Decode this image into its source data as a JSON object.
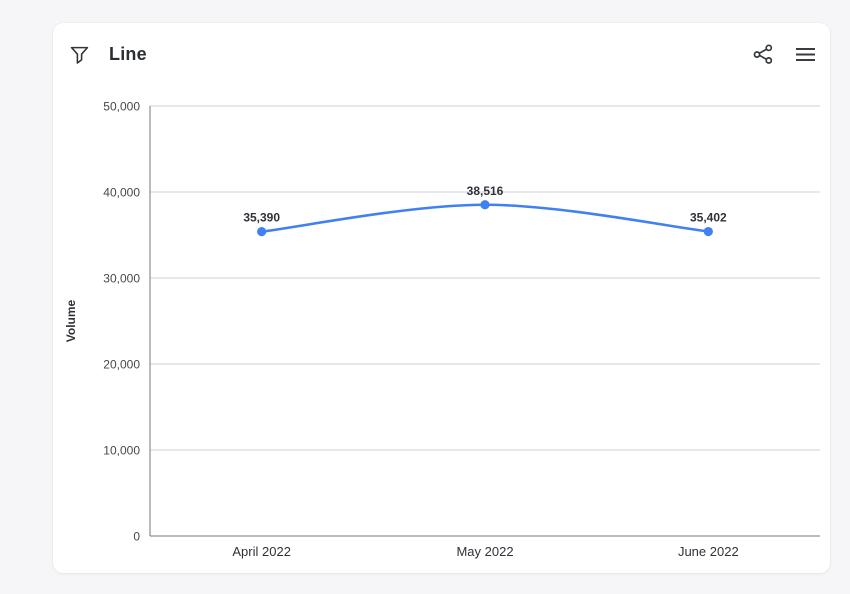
{
  "header": {
    "title": "Line",
    "icons": [
      "filter-icon",
      "share-icon",
      "menu-icon"
    ]
  },
  "colors": {
    "page_bg": "#f6f6f8",
    "card_bg": "#ffffff",
    "line": "#4080f0",
    "grid": "#cfcfdd",
    "axis": "#75757f",
    "icon": "#32363a",
    "text_dark": "#2f3338"
  },
  "chart_data": {
    "type": "line",
    "categories": [
      "April 2022",
      "May 2022",
      "June 2022"
    ],
    "series": [
      {
        "name": "Volume",
        "values": [
          35390,
          38516,
          35402
        ]
      }
    ],
    "data_labels": [
      "35,390",
      "38,516",
      "35,402"
    ],
    "title": "Line",
    "xlabel": "",
    "ylabel": "Volume",
    "ylim": [
      0,
      50000
    ],
    "ytick_interval": 10000,
    "ytick_labels": [
      "0",
      "10,000",
      "20,000",
      "30,000",
      "40,000",
      "50,000"
    ],
    "grid": true,
    "legend": false
  }
}
